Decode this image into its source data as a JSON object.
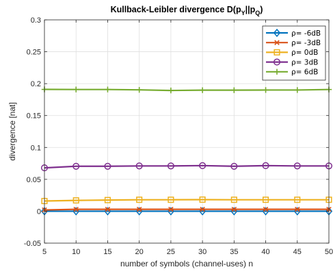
{
  "chart_data": {
    "type": "line",
    "title": "Kullback-Leibler divergence D(p",
    "title_sub_y": "Y",
    "title_mid": "||p",
    "title_sub_q": "Q",
    "title_end": ")",
    "xlabel": "number of symbols (channel-uses) n",
    "ylabel": "divergence [nat]",
    "x": [
      5,
      10,
      15,
      20,
      25,
      30,
      35,
      40,
      45,
      50
    ],
    "xlim": [
      5,
      50
    ],
    "ylim": [
      -0.05,
      0.3
    ],
    "xticks": [
      5,
      10,
      15,
      20,
      25,
      30,
      35,
      40,
      45,
      50
    ],
    "yticks": [
      -0.05,
      0,
      0.05,
      0.1,
      0.15,
      0.2,
      0.25,
      0.3
    ],
    "ytick_labels": [
      "-0.05",
      "0",
      "0.05",
      "0.1",
      "0.15",
      "0.2",
      "0.25",
      "0.3"
    ],
    "grid": true,
    "legend_position": "top-right",
    "series": [
      {
        "name": "ρ= -6dB",
        "color": "#0072BD",
        "marker": "diamond",
        "values": [
          0.0,
          0.0,
          0.0,
          0.0,
          0.0,
          0.0,
          0.0,
          0.0,
          0.0,
          0.0
        ]
      },
      {
        "name": "ρ= -3dB",
        "color": "#D95319",
        "marker": "x",
        "values": [
          0.002,
          0.003,
          0.003,
          0.003,
          0.003,
          0.003,
          0.003,
          0.003,
          0.003,
          0.003
        ]
      },
      {
        "name": "ρ= 0dB",
        "color": "#EDB120",
        "marker": "square",
        "values": [
          0.016,
          0.017,
          0.0175,
          0.018,
          0.018,
          0.0182,
          0.018,
          0.018,
          0.018,
          0.018
        ]
      },
      {
        "name": "ρ= 3dB",
        "color": "#7E2F8E",
        "marker": "circle",
        "values": [
          0.068,
          0.0705,
          0.0705,
          0.071,
          0.071,
          0.0715,
          0.0705,
          0.0715,
          0.071,
          0.071
        ]
      },
      {
        "name": "ρ= 6dB",
        "color": "#77AC30",
        "marker": "plus",
        "values": [
          0.191,
          0.1908,
          0.1908,
          0.1903,
          0.1893,
          0.1898,
          0.1898,
          0.19,
          0.19,
          0.1908
        ]
      }
    ]
  }
}
